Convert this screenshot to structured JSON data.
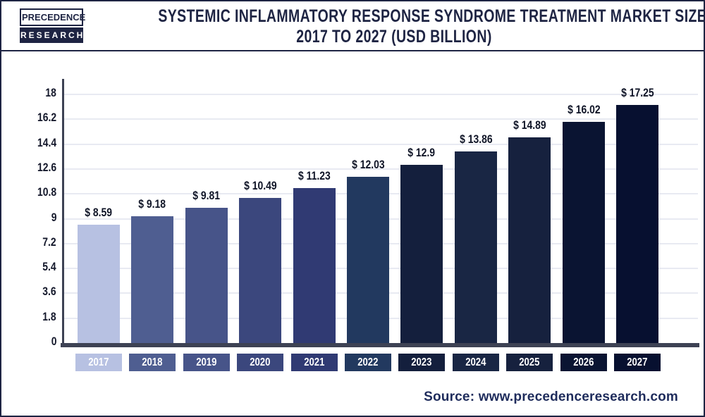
{
  "header": {
    "logo": {
      "line1": "PRECEDENCE",
      "line2": "RESEARCH"
    },
    "title_line1": "SYSTEMIC INFLAMMATORY RESPONSE SYNDROME TREATMENT MARKET SIZE",
    "title_line2": "2017 TO 2027 (USD BILLION)"
  },
  "chart_data": {
    "type": "bar",
    "title": "Systemic Inflammatory Response Syndrome Treatment Market Size 2017 to 2027 (USD Billion)",
    "unit": "USD Billion",
    "categories": [
      "2017",
      "2018",
      "2019",
      "2020",
      "2021",
      "2022",
      "2023",
      "2024",
      "2025",
      "2026",
      "2027"
    ],
    "values": [
      8.59,
      9.18,
      9.81,
      10.49,
      11.23,
      12.03,
      12.9,
      13.86,
      14.89,
      16.02,
      17.25
    ],
    "value_labels": [
      "$ 8.59",
      "$ 9.18",
      "$ 9.81",
      "$ 10.49",
      "$ 11.23",
      "$ 12.03",
      "$ 12.9",
      "$ 13.86",
      "$ 14.89",
      "$ 16.02",
      "$ 17.25"
    ],
    "bar_colors": [
      "#b7c1e2",
      "#4f5e91",
      "#475489",
      "#3b477d",
      "#303a73",
      "#22395f",
      "#141f3d",
      "#192644",
      "#16213e",
      "#0a1432",
      "#071030"
    ],
    "ylim": [
      0,
      18
    ],
    "y_ticks": [
      0,
      1.8,
      3.6,
      5.4,
      7.2,
      9,
      10.8,
      12.6,
      14.4,
      16.2,
      18
    ],
    "y_tick_labels": [
      "0",
      "1.8",
      "3.6",
      "5.4",
      "7.2",
      "9",
      "10.8",
      "12.6",
      "14.4",
      "16.2",
      "18"
    ],
    "grid": true,
    "legend": false,
    "xlabel": "",
    "ylabel": ""
  },
  "footer": {
    "source": "Source: www.precedenceresearch.com"
  },
  "colors": {
    "accent_navy": "#1e2443",
    "axis": "#3d4254",
    "gridline": "#e8eaf2",
    "value_label": "#101527",
    "source_text": "#1f2c5c",
    "background": "#ffffff"
  }
}
